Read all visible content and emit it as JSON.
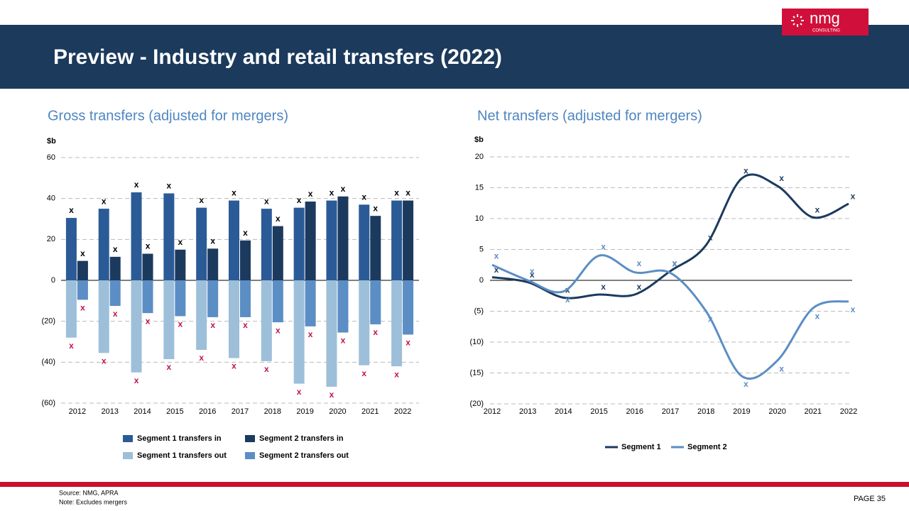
{
  "header": {
    "title": "Preview - Industry and retail transfers (2022)"
  },
  "logo": {
    "name": "nmg",
    "tagline": "CONSULTING"
  },
  "chart_data": [
    {
      "type": "bar",
      "title": "Gross transfers (adjusted for mergers)",
      "y_unit": "$b",
      "categories": [
        "2012",
        "2013",
        "2014",
        "2015",
        "2016",
        "2017",
        "2018",
        "2019",
        "2020",
        "2021",
        "2022"
      ],
      "series": [
        {
          "name": "Segment 1 transfers in",
          "color": "#2b5b97",
          "values": [
            30.5,
            35,
            43,
            42.5,
            35.5,
            39,
            35,
            35.5,
            39,
            37,
            39
          ]
        },
        {
          "name": "Segment 2 transfers in",
          "color": "#1c3a5e",
          "values": [
            9.5,
            11.5,
            13,
            15,
            15.5,
            19.5,
            26.5,
            38.5,
            41,
            31.5,
            39
          ]
        },
        {
          "name": "Segment 1 transfers out",
          "color": "#9dbfd9",
          "values": [
            -28,
            -35.5,
            -45,
            -38.5,
            -34,
            -38,
            -39.5,
            -50.5,
            -52,
            -41.5,
            -42
          ]
        },
        {
          "name": "Segment 2 transfers out",
          "color": "#5b8ec4",
          "values": [
            -9.5,
            -12.5,
            -16,
            -17.5,
            -18,
            -18,
            -20.5,
            -22.5,
            -25.5,
            -21.5,
            -26.5
          ]
        }
      ],
      "ylim": [
        -60,
        60
      ],
      "yticks": [
        60,
        40,
        20,
        0,
        {
          "value": -20,
          "label": "(20)"
        },
        {
          "value": -40,
          "label": "(40)"
        },
        {
          "value": -60,
          "label": "(60)"
        }
      ],
      "grid": true,
      "data_label": "x"
    },
    {
      "type": "line",
      "title": "Net transfers (adjusted for mergers)",
      "y_unit": "$b",
      "categories": [
        "2012",
        "2013",
        "2014",
        "2015",
        "2016",
        "2017",
        "2018",
        "2019",
        "2020",
        "2021",
        "2022"
      ],
      "series": [
        {
          "name": "Segment 1",
          "color": "#1c3a5e",
          "values": [
            0.5,
            -0.3,
            -2.8,
            -2.3,
            -2.3,
            1.5,
            5.7,
            16.5,
            15.3,
            10.2,
            12.4
          ]
        },
        {
          "name": "Segment 2",
          "color": "#5b8ec4",
          "values": [
            2.5,
            0,
            -1.8,
            4,
            1.3,
            1.2,
            -5,
            -15.5,
            -13,
            -4.5,
            -3.4
          ]
        }
      ],
      "ylim": [
        -20,
        20
      ],
      "yticks": [
        20,
        15,
        10,
        5,
        0,
        {
          "value": -5,
          "label": "(5)"
        },
        {
          "value": -10,
          "label": "(10)"
        },
        {
          "value": -15,
          "label": "(15)"
        },
        {
          "value": -20,
          "label": "(20)"
        }
      ],
      "grid": true,
      "data_label": "x"
    }
  ],
  "footer": {
    "source": "Source: NMG,  APRA",
    "note": "Note: Excludes mergers",
    "page": "PAGE  35"
  }
}
